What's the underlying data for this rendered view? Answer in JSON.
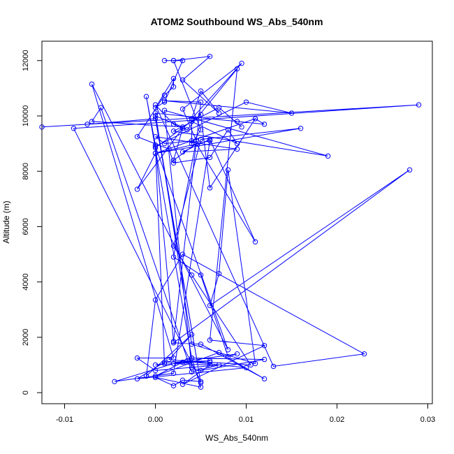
{
  "chart_data": {
    "type": "line",
    "title": "ATOM2 Southbound WS_Abs_540nm",
    "xlabel": "WS_Abs_540nm",
    "ylabel": "Altitude (m)",
    "xlim": [
      -0.0125,
      0.0305
    ],
    "ylim": [
      -400,
      12700
    ],
    "x_ticks": [
      -0.01,
      0.0,
      0.01,
      0.02,
      0.03
    ],
    "x_tick_labels": [
      "-0.01",
      "0.00",
      "0.01",
      "0.02",
      "0.03"
    ],
    "y_ticks": [
      0,
      2000,
      4000,
      6000,
      8000,
      10000,
      12000
    ],
    "y_tick_labels": [
      "0",
      "2000",
      "4000",
      "6000",
      "8000",
      "10000",
      "12000"
    ],
    "grid": false,
    "legend": "none",
    "series": [
      {
        "color": "#0000ff",
        "marker": "open-circle",
        "x": [
          0.001,
          0.002,
          0.003,
          0.001,
          0.0,
          0.002,
          0.002,
          0.001,
          -0.002,
          0.0015,
          0.002,
          0.006,
          0.008,
          0.009,
          0.004,
          0.004,
          0.005,
          0.002,
          0.006,
          0.003,
          0.007,
          0.005,
          0.004,
          0.0095,
          0.003,
          0.0045,
          0.002,
          0.005,
          0.008,
          0.009,
          0.0035,
          0.002,
          0.006,
          0.003,
          0.012,
          0.006,
          0.009,
          0.0035,
          0.002,
          0.0,
          0.013,
          0.023,
          0.003,
          0.0,
          -0.001,
          0.004,
          0.0015,
          0.01,
          -0.002,
          0.001,
          0.006,
          0.0,
          0.001,
          0.0,
          0.005,
          0.006,
          0.011,
          0.004,
          0.001,
          0.0,
          0.009,
          0.003,
          0.006,
          0.011,
          0.0045,
          0.002,
          0.003,
          -0.002,
          0.0,
          0.016,
          0.005,
          0.002,
          0.004,
          0.0105,
          0.006,
          0.003,
          0.0,
          0.007,
          0.012,
          0.005,
          0.002,
          0.028,
          0.006,
          0.007,
          0.008,
          0.011,
          0.004,
          0.0,
          0.009,
          0.012,
          0.011,
          0.0,
          0.006,
          0.002,
          -0.0045,
          0.004,
          -0.001,
          0.0,
          0.002,
          0.005,
          0.001,
          0.015,
          0.01,
          0.0,
          0.008,
          -0.007,
          0.002,
          -0.002,
          0.0,
          0.007,
          0.004,
          -0.006,
          -0.007,
          0.003,
          0.0,
          0.005,
          0.0,
          -0.0075,
          -0.0125,
          0.029,
          -0.009,
          0.005,
          0.003,
          0.002,
          0.0,
          0.005,
          0.004,
          0.012,
          0.005,
          0.004,
          0.001,
          0.019,
          0.002,
          0.007,
          0.0095
        ],
        "y": [
          12000,
          12000,
          12000,
          10500,
          10300,
          11350,
          11050,
          10750,
          9250,
          8800,
          8300,
          8500,
          9500,
          9000,
          9800,
          9000,
          9500,
          12000,
          12150,
          11300,
          10100,
          10900,
          9900,
          11900,
          10250,
          9100,
          4900,
          4250,
          1300,
          1400,
          1150,
          1050,
          1000,
          300,
          1700,
          1900,
          11700,
          9500,
          9700,
          10400,
          950,
          1400,
          5000,
          3350,
          600,
          2100,
          1200,
          900,
          500,
          1100,
          1150,
          1000,
          1050,
          8850,
          10050,
          7400,
          9900,
          9100,
          9000,
          9250,
          8800,
          8700,
          9150,
          5450,
          9000,
          8400,
          9550,
          7350,
          8650,
          9550,
          9150,
          5300,
          4250,
          1000,
          1100,
          1100,
          600,
          1450,
          500,
          1750,
          1800,
          8050,
          3150,
          4300,
          8050,
          1050,
          1750,
          10100,
          9800,
          9700,
          9900,
          8650,
          9100,
          700,
          400,
          1250,
          10700,
          8950,
          1850,
          10500,
          10550,
          10100,
          10500,
          8900,
          1550,
          11150,
          1250,
          1250,
          800,
          1000,
          750,
          10300,
          9800,
          9600,
          10000,
          350,
          9900,
          9700,
          9600,
          10400,
          9550,
          400,
          450,
          250,
          550,
          200,
          1250,
          1200,
          800,
          900,
          10200,
          8550,
          9450,
          10300,
          9600
        ]
      }
    ]
  }
}
